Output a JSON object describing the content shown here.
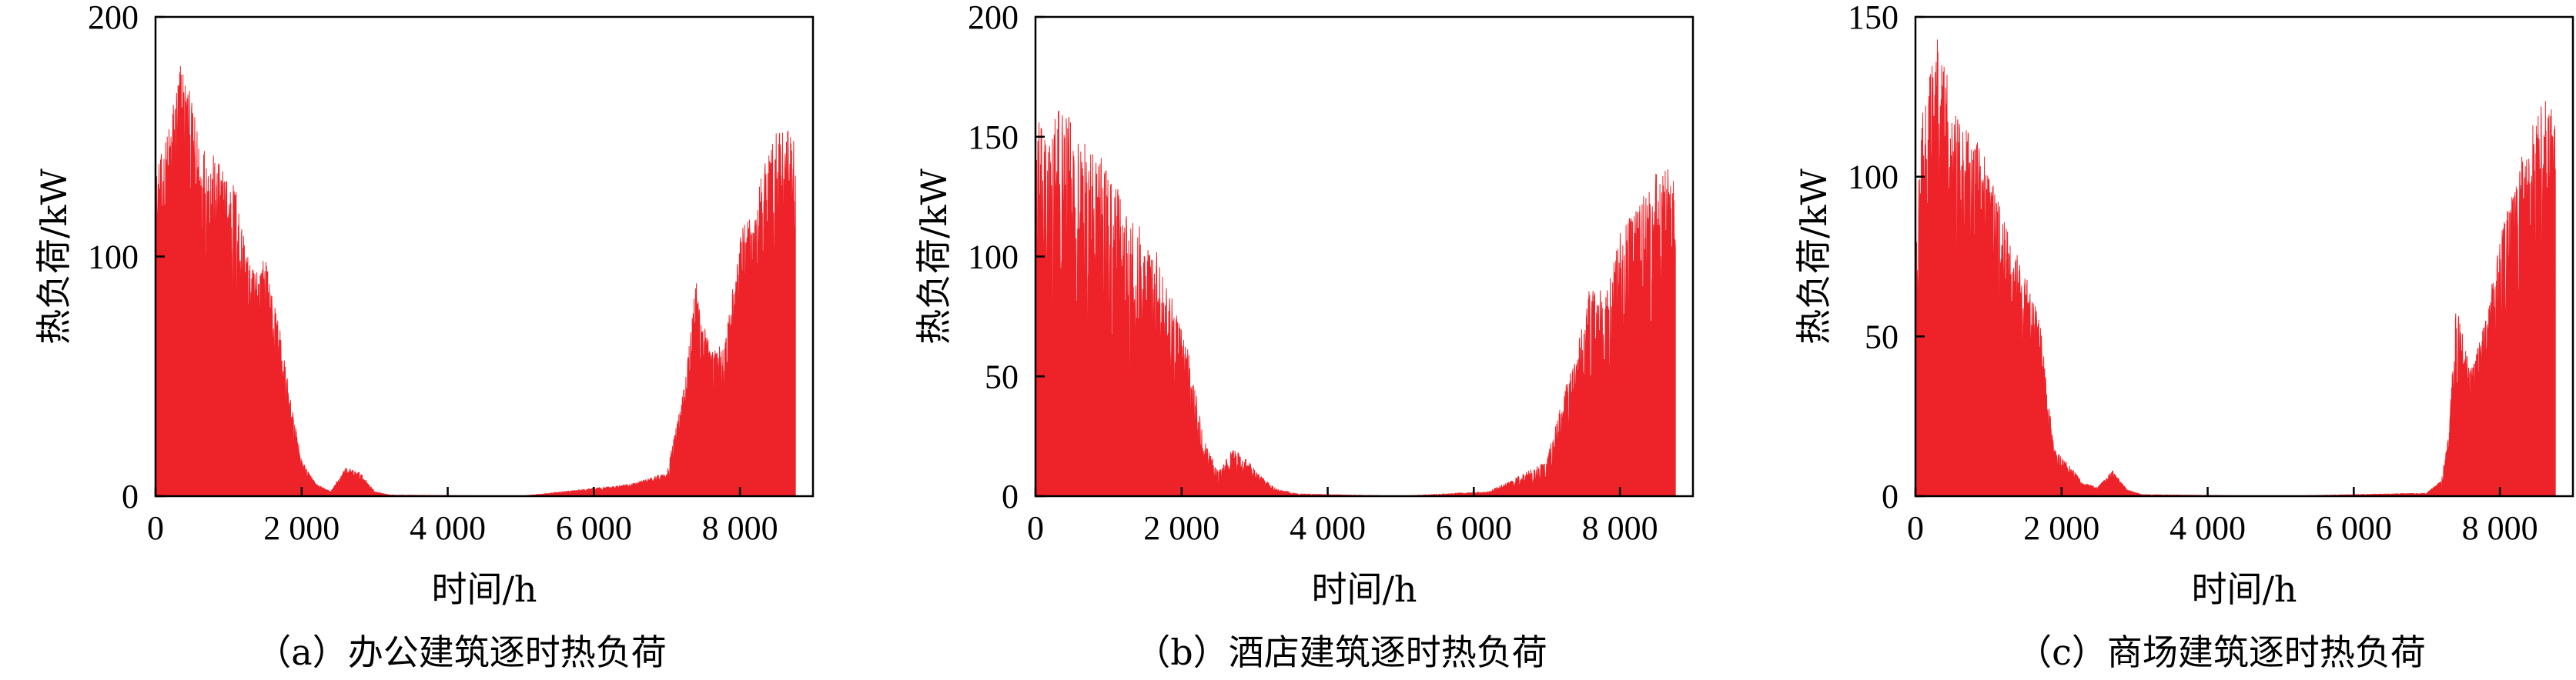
{
  "chart_data": [
    {
      "type": "area",
      "caption": "（a）办公建筑逐时热负荷",
      "xlabel": "时间/h",
      "ylabel": "热负荷/kW",
      "xlim": [
        0,
        9000
      ],
      "ylim": [
        0,
        200
      ],
      "xticks": [
        0,
        2000,
        4000,
        6000,
        8000
      ],
      "xtick_labels": [
        "0",
        "2 000",
        "4 000",
        "6 000",
        "8 000"
      ],
      "yticks": [
        0,
        100,
        200
      ],
      "ytick_labels": [
        "0",
        "100",
        "200"
      ],
      "color": "#ee2229",
      "grid": false,
      "x": [
        0,
        150,
        350,
        600,
        850,
        1100,
        1300,
        1500,
        1700,
        1850,
        2000,
        2200,
        2400,
        2600,
        2800,
        3000,
        3200,
        5000,
        6500,
        7000,
        7200,
        7400,
        7600,
        7800,
        8000,
        8200,
        8400,
        8600,
        8760
      ],
      "values": [
        135,
        150,
        185,
        150,
        140,
        130,
        95,
        100,
        70,
        40,
        15,
        5,
        2,
        12,
        10,
        2,
        0.5,
        0,
        5,
        10,
        40,
        90,
        60,
        65,
        110,
        120,
        150,
        155,
        150
      ]
    },
    {
      "type": "area",
      "caption": "（b）酒店建筑逐时热负荷",
      "xlabel": "时间/h",
      "ylabel": "热负荷/kW",
      "xlim": [
        0,
        9000
      ],
      "ylim": [
        0,
        200
      ],
      "xticks": [
        0,
        2000,
        4000,
        6000,
        8000
      ],
      "xtick_labels": [
        "0",
        "2 000",
        "4 000",
        "6 000",
        "8 000"
      ],
      "yticks": [
        0,
        50,
        100,
        150,
        200
      ],
      "ytick_labels": [
        "0",
        "50",
        "100",
        "150",
        "200"
      ],
      "color": "#ee2229",
      "grid": false,
      "x": [
        0,
        150,
        350,
        600,
        850,
        1100,
        1300,
        1500,
        1700,
        1900,
        2100,
        2300,
        2500,
        2700,
        2900,
        3100,
        3300,
        3600,
        5000,
        6200,
        6600,
        7000,
        7200,
        7400,
        7600,
        7800,
        8000,
        8200,
        8400,
        8600,
        8760
      ],
      "values": [
        160,
        150,
        165,
        150,
        145,
        130,
        120,
        110,
        100,
        80,
        60,
        25,
        10,
        20,
        15,
        8,
        3,
        1,
        0,
        2,
        8,
        15,
        40,
        60,
        90,
        85,
        110,
        120,
        130,
        140,
        130
      ]
    },
    {
      "type": "area",
      "caption": "（c）商场建筑逐时热负荷",
      "xlabel": "时间/h",
      "ylabel": "热负荷/kW",
      "xlim": [
        0,
        9000
      ],
      "ylim": [
        0,
        150
      ],
      "xticks": [
        0,
        2000,
        4000,
        6000,
        8000
      ],
      "xtick_labels": [
        "0",
        "2 000",
        "4 000",
        "6 000",
        "8 000"
      ],
      "yticks": [
        0,
        50,
        100,
        150
      ],
      "ytick_labels": [
        "0",
        "50",
        "100",
        "150"
      ],
      "color": "#ee2229",
      "grid": false,
      "x": [
        0,
        100,
        300,
        500,
        700,
        900,
        1100,
        1300,
        1500,
        1700,
        1900,
        2100,
        2300,
        2500,
        2700,
        2900,
        3100,
        5000,
        7000,
        7200,
        7300,
        7400,
        7600,
        7800,
        8000,
        8200,
        8400,
        8600,
        8760
      ],
      "values": [
        85,
        120,
        145,
        125,
        115,
        110,
        95,
        80,
        70,
        55,
        15,
        10,
        4,
        3,
        8,
        2,
        0.5,
        0,
        1,
        5,
        20,
        60,
        40,
        55,
        80,
        100,
        115,
        125,
        120
      ]
    }
  ]
}
